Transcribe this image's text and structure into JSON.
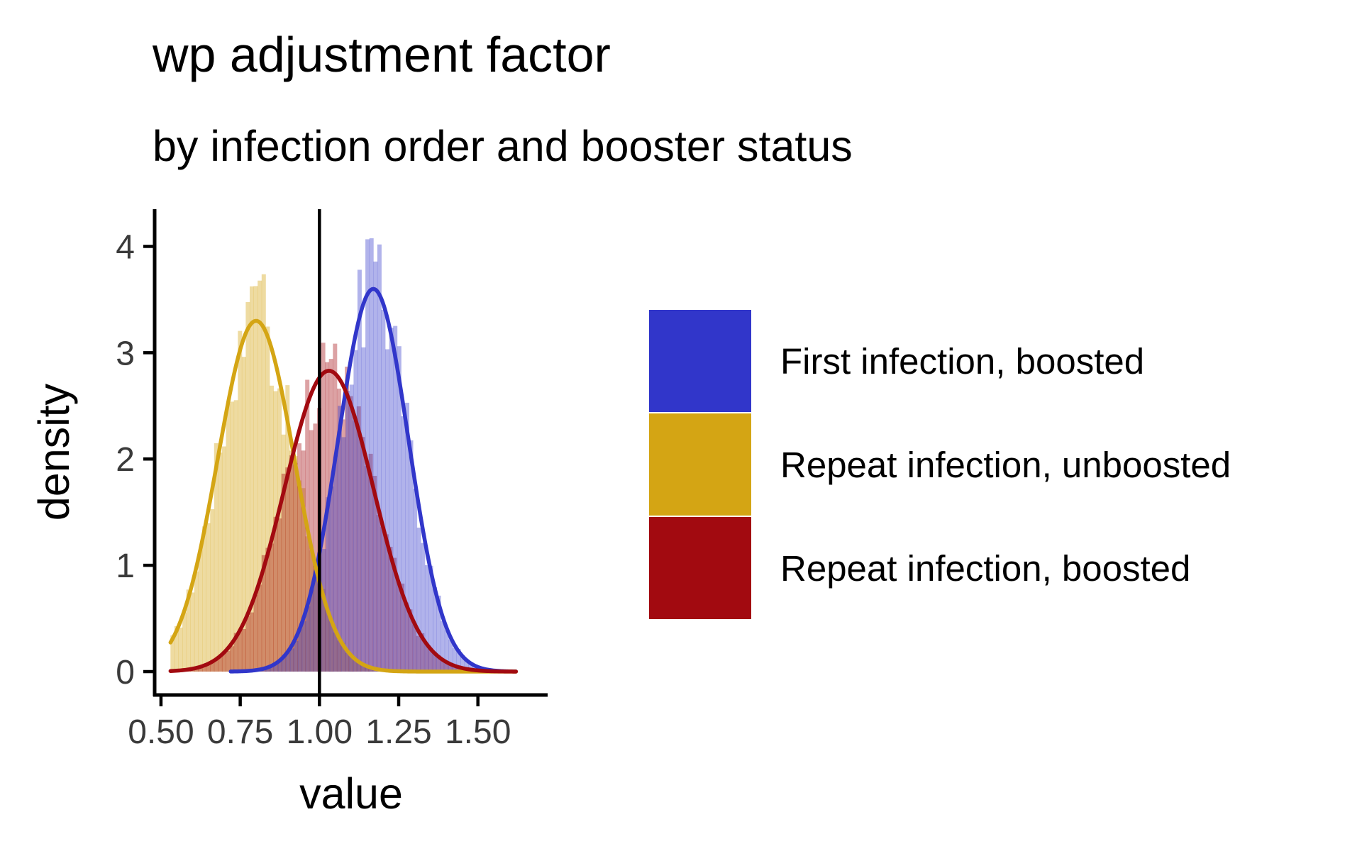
{
  "title": "wp adjustment factor",
  "subtitle": "by infection order and booster status",
  "chart_data": {
    "type": "histogram-density",
    "xlabel": "value",
    "ylabel": "density",
    "xlim": [
      0.48,
      1.72
    ],
    "ylim": [
      -0.22,
      4.35
    ],
    "x_ticks": [
      0.5,
      0.75,
      1.0,
      1.25,
      1.5
    ],
    "x_tick_labels": [
      "0.50",
      "0.75",
      "1.00",
      "1.25",
      "1.50"
    ],
    "y_ticks": [
      0,
      1,
      2,
      3,
      4
    ],
    "y_tick_labels": [
      "0",
      "1",
      "2",
      "3",
      "4"
    ],
    "reference_line_x": 1.0,
    "grid": false,
    "legend_position": "right",
    "series": [
      {
        "name": "First infection, boosted",
        "color": "#3136CA",
        "mean": 1.17,
        "sd": 0.111,
        "peak": 3.6,
        "range": [
          0.72,
          1.62
        ],
        "hist_peak": 4.15
      },
      {
        "name": "Repeat infection, unboosted",
        "color": "#D4A514",
        "mean": 0.8,
        "sd": 0.121,
        "peak": 3.3,
        "range": [
          0.53,
          1.62
        ],
        "hist_peak": 3.85
      },
      {
        "name": "Repeat infection, boosted",
        "color": "#A20A10",
        "mean": 1.03,
        "sd": 0.141,
        "peak": 2.83,
        "range": [
          0.53,
          1.62
        ],
        "hist_peak": 3.1
      }
    ]
  }
}
